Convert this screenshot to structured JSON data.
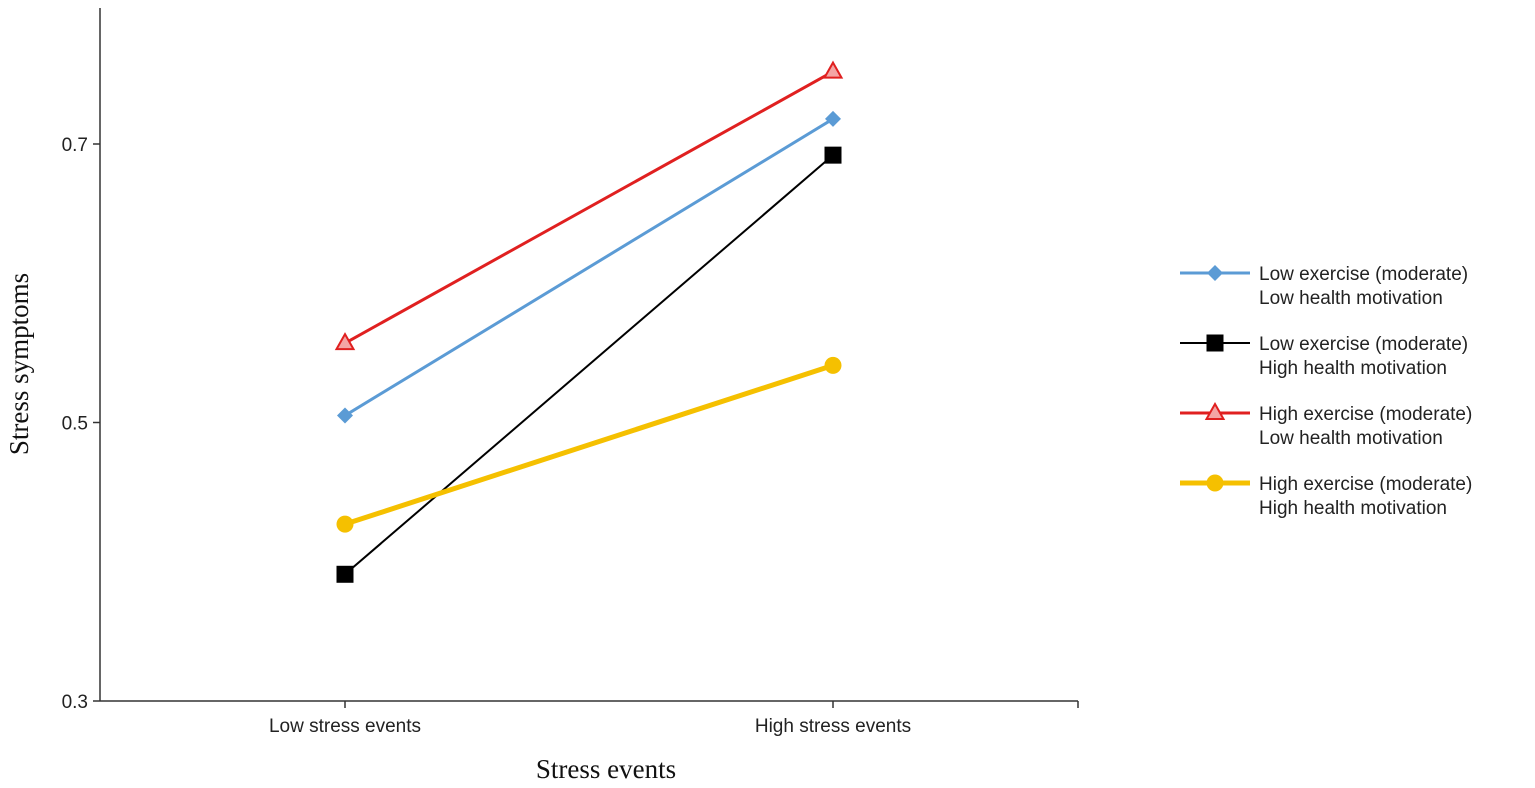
{
  "chart_data": {
    "type": "line",
    "xlabel": "Stress events",
    "ylabel": "Stress symptoms",
    "categories": [
      "Low stress events",
      "High stress events"
    ],
    "yticks": [
      0.3,
      0.5,
      0.7
    ],
    "ylim": [
      0.3,
      0.8
    ],
    "grid": false,
    "legend_position": "right",
    "series": [
      {
        "name_line1": "Low exercise (moderate)",
        "name_line2": "Low health motivation",
        "values": [
          0.505,
          0.718
        ],
        "color": "#5b9bd5",
        "marker": "diamond"
      },
      {
        "name_line1": "Low exercise (moderate)",
        "name_line2": "High health motivation",
        "values": [
          0.391,
          0.692
        ],
        "color": "#000000",
        "marker": "square"
      },
      {
        "name_line1": "High exercise (moderate)",
        "name_line2": "Low health motivation",
        "values": [
          0.557,
          0.752
        ],
        "color": "#e02020",
        "marker": "triangle"
      },
      {
        "name_line1": "High exercise (moderate)",
        "name_line2": "High health motivation",
        "values": [
          0.427,
          0.541
        ],
        "color": "#f5c000",
        "marker": "circle"
      }
    ]
  }
}
